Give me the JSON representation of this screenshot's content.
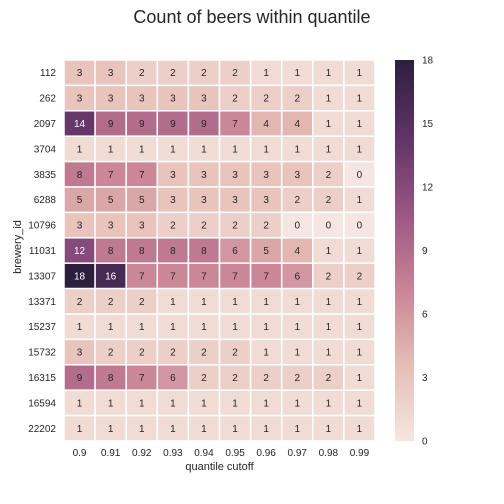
{
  "chart_data": {
    "type": "heatmap",
    "title": "Count of beers within quantile",
    "xlabel": "quantile cutoff",
    "ylabel": "brewery_id",
    "x": [
      "0.9",
      "0.91",
      "0.92",
      "0.93",
      "0.94",
      "0.95",
      "0.96",
      "0.97",
      "0.98",
      "0.99"
    ],
    "y": [
      "112",
      "262",
      "2097",
      "3704",
      "3835",
      "6288",
      "10796",
      "11031",
      "13307",
      "13371",
      "15237",
      "15732",
      "16315",
      "16594",
      "22202"
    ],
    "values": [
      [
        3,
        3,
        2,
        2,
        2,
        2,
        1,
        1,
        1,
        1
      ],
      [
        3,
        3,
        3,
        3,
        3,
        2,
        2,
        2,
        1,
        1
      ],
      [
        14,
        9,
        9,
        9,
        9,
        7,
        4,
        4,
        1,
        1
      ],
      [
        1,
        1,
        1,
        1,
        1,
        1,
        1,
        1,
        1,
        1
      ],
      [
        8,
        7,
        7,
        3,
        3,
        3,
        3,
        3,
        2,
        0
      ],
      [
        5,
        5,
        5,
        3,
        3,
        3,
        3,
        2,
        2,
        1
      ],
      [
        3,
        3,
        3,
        2,
        2,
        2,
        2,
        0,
        0,
        0
      ],
      [
        12,
        8,
        8,
        8,
        8,
        6,
        5,
        4,
        1,
        1
      ],
      [
        18,
        16,
        7,
        7,
        7,
        7,
        7,
        6,
        2,
        2
      ],
      [
        2,
        2,
        2,
        1,
        1,
        1,
        1,
        1,
        1,
        1
      ],
      [
        1,
        1,
        1,
        1,
        1,
        1,
        1,
        1,
        1,
        1
      ],
      [
        3,
        2,
        2,
        2,
        2,
        2,
        1,
        1,
        1,
        1
      ],
      [
        9,
        8,
        7,
        6,
        2,
        2,
        2,
        2,
        2,
        1
      ],
      [
        1,
        1,
        1,
        1,
        1,
        1,
        1,
        1,
        1,
        1
      ],
      [
        1,
        1,
        1,
        1,
        1,
        1,
        1,
        1,
        1,
        1
      ]
    ],
    "vmin": 0,
    "vmax": 18,
    "colorbar_ticks": [
      0,
      3,
      6,
      9,
      12,
      15,
      18
    ],
    "annotated": true,
    "colormap": [
      "#f5e6e1",
      "#e5bdb6",
      "#c98495",
      "#9a5584",
      "#5e3466",
      "#2d1e3e"
    ]
  }
}
